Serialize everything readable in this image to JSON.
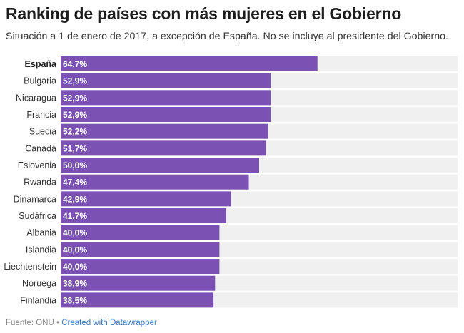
{
  "title": "Ranking de países con más mujeres en el Gobierno",
  "subtitle": "Situación a 1 de enero de 2017, a excepción de España. No se incluye al presidente del Gobierno.",
  "footer": {
    "source": "Fuente: ONU",
    "separator": "•",
    "credit": "Created with Datawrapper"
  },
  "colors": {
    "bar": "#7b52b3",
    "track": "#f0f0f0",
    "value_text": "#ffffff",
    "label_text": "#333333"
  },
  "chart_data": {
    "type": "bar",
    "orientation": "horizontal",
    "title": "Ranking de países con más mujeres en el Gobierno",
    "xlim": [
      0,
      100
    ],
    "highlighted": "España",
    "categories": [
      "España",
      "Bulgaria",
      "Nicaragua",
      "Francia",
      "Suecia",
      "Canadá",
      "Eslovenia",
      "Rwanda",
      "Dinamarca",
      "Sudáfrica",
      "Albania",
      "Islandia",
      "Liechtenstein",
      "Noruega",
      "Finlandia"
    ],
    "values": [
      64.7,
      52.9,
      52.9,
      52.9,
      52.2,
      51.7,
      50.0,
      47.4,
      42.9,
      41.7,
      40.0,
      40.0,
      40.0,
      38.9,
      38.5
    ],
    "value_labels": [
      "64,7%",
      "52,9%",
      "52,9%",
      "52,9%",
      "52,2%",
      "51,7%",
      "50,0%",
      "47,4%",
      "42,9%",
      "41,7%",
      "40,0%",
      "40,0%",
      "40,0%",
      "38,9%",
      "38,5%"
    ]
  }
}
